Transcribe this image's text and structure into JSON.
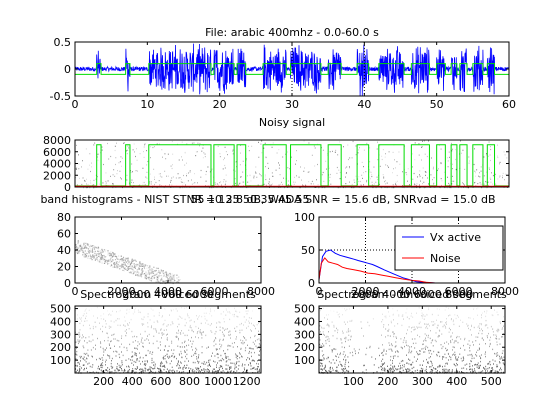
{
  "colors": {
    "vx": "#0000ff",
    "noise": "#ff0000",
    "vad": "#00dd00",
    "waveform": "#0000ff",
    "gray": "#777777"
  },
  "chart_data": [
    {
      "id": "waveform",
      "type": "line",
      "title": "File: arabic 400mhz - 0.0-60.0 s",
      "xlabel": "Noisy signal",
      "xlim": [
        0,
        60
      ],
      "ylim": [
        -0.5,
        0.5
      ],
      "xticks": [
        "0",
        "10",
        "20",
        "30",
        "40",
        "50",
        "60"
      ],
      "yticks": [
        "-0.5",
        "0",
        "0.5"
      ],
      "vad_segments": [
        [
          3.0,
          3.6
        ],
        [
          7.0,
          7.6
        ],
        [
          10.2,
          18.8
        ],
        [
          19.2,
          22.0
        ],
        [
          22.4,
          23.6
        ],
        [
          26.0,
          29.2
        ],
        [
          29.8,
          34.0
        ],
        [
          35.0,
          36.8
        ],
        [
          39.0,
          40.6
        ],
        [
          42.0,
          45.5
        ],
        [
          46.5,
          49.0
        ],
        [
          50.0,
          51.2
        ],
        [
          52.0,
          52.8
        ],
        [
          53.2,
          54.2
        ],
        [
          55.0,
          56.4
        ],
        [
          57.0,
          58.0
        ]
      ],
      "dotted_vlines": [
        30,
        40
      ]
    },
    {
      "id": "noisy-spectrogram",
      "type": "heatmap",
      "xlim": [
        0,
        60
      ],
      "ylim": [
        0,
        8000
      ],
      "yticks": [
        "0",
        "2000",
        "4000",
        "6000",
        "8000"
      ],
      "vad_segments": [
        [
          3.0,
          3.6
        ],
        [
          7.0,
          7.6
        ],
        [
          10.2,
          18.8
        ],
        [
          19.2,
          22.0
        ],
        [
          22.4,
          23.6
        ],
        [
          26.0,
          29.2
        ],
        [
          29.8,
          34.0
        ],
        [
          35.0,
          36.8
        ],
        [
          39.0,
          40.6
        ],
        [
          42.0,
          45.5
        ],
        [
          46.5,
          49.0
        ],
        [
          50.0,
          51.2
        ],
        [
          52.0,
          52.8
        ],
        [
          53.2,
          54.2
        ],
        [
          55.0,
          56.4
        ],
        [
          57.0,
          58.0
        ]
      ]
    },
    {
      "id": "band-histograms",
      "type": "heatmap",
      "title": "band histograms - NIST STNR = 13.8 dB, WADA SNR = 15.6 dB, SNRvad = 15.0 dB",
      "title_overlap": "55     10     25     50     35     45     55",
      "xlim": [
        0,
        8000
      ],
      "ylim": [
        0,
        80
      ],
      "xticks": [
        "0",
        "2000",
        "4000",
        "6000",
        "8000"
      ],
      "yticks": [
        "0",
        "20",
        "40",
        "60",
        "80"
      ]
    },
    {
      "id": "level-distributions",
      "type": "line",
      "xlim": [
        0,
        8000
      ],
      "ylim": [
        0,
        100
      ],
      "xticks": [
        "0",
        "2000",
        "4000",
        "6000",
        "8000"
      ],
      "yticks": [
        "0",
        "50",
        "100"
      ],
      "legend_placement": "top-right",
      "series": [
        {
          "name": "Vx active",
          "x": [
            0,
            150,
            300,
            500,
            700,
            900,
            1100,
            1300,
            1500,
            1700,
            1900,
            2100,
            2300,
            2500,
            2800,
            3200,
            3600,
            4000,
            4200,
            4500,
            5000,
            6000,
            8000
          ],
          "values": [
            5,
            40,
            48,
            50,
            45,
            42,
            40,
            38,
            36,
            34,
            32,
            30,
            28,
            25,
            20,
            14,
            8,
            4,
            2,
            1,
            0,
            0,
            0
          ]
        },
        {
          "name": "Noise",
          "x": [
            0,
            100,
            250,
            400,
            600,
            800,
            1000,
            1200,
            1500,
            1800,
            2100,
            2400,
            2700,
            3000,
            3300,
            3600,
            4000,
            4300,
            4600,
            5000,
            6000,
            8000
          ],
          "values": [
            5,
            30,
            38,
            32,
            30,
            28,
            24,
            22,
            20,
            18,
            15,
            14,
            12,
            10,
            8,
            6,
            4,
            3,
            1,
            0,
            0,
            0
          ]
        }
      ],
      "dotted_vlines": [
        2000,
        4000,
        6000
      ],
      "dotted_hlines": [
        50
      ]
    },
    {
      "id": "voiced-spectrogram",
      "type": "heatmap",
      "title": "Spectrogram - voiced segments",
      "title_overlap": "2000    4000    6000",
      "xlim": [
        0,
        1300
      ],
      "ylim": [
        0,
        520
      ],
      "xticks": [
        "200",
        "400",
        "600",
        "800",
        "1000",
        "1200"
      ],
      "yticks": [
        "100",
        "200",
        "300",
        "400",
        "500"
      ]
    },
    {
      "id": "unvoiced-spectrogram",
      "type": "heatmap",
      "title": "Spectrogram - unvoiced segments",
      "title_overlap": "2000    4000    6000    8000",
      "xlim": [
        0,
        540
      ],
      "ylim": [
        0,
        520
      ],
      "xticks": [
        "100",
        "200",
        "300",
        "400",
        "500"
      ],
      "yticks": [
        "100",
        "200",
        "300",
        "400",
        "500"
      ]
    }
  ]
}
